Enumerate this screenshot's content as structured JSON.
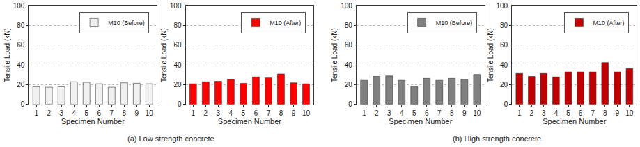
{
  "chart_data": [
    {
      "type": "bar",
      "x_label": "Specimen Number",
      "y_label": "Tensile Load (kN)",
      "categories": [
        "1",
        "2",
        "3",
        "4",
        "5",
        "6",
        "7",
        "8",
        "9",
        "10"
      ],
      "series": [
        {
          "name": "M10 (Before)",
          "color": "#f0f0f0",
          "values": [
            18,
            17.5,
            18,
            23,
            22.5,
            21,
            17.5,
            22,
            21.5,
            21
          ]
        }
      ],
      "ylim": [
        0,
        100
      ],
      "yticks": [
        0,
        20,
        40,
        60,
        80,
        100
      ],
      "grid": true,
      "legend": "upper right"
    },
    {
      "type": "bar",
      "x_label": "Specimen Number",
      "y_label": "Tensile Load (kN)",
      "categories": [
        "1",
        "2",
        "3",
        "4",
        "5",
        "6",
        "7",
        "8",
        "9",
        "10"
      ],
      "series": [
        {
          "name": "M10 (After)",
          "color": "#ff0000",
          "values": [
            21,
            23,
            23.5,
            25.5,
            21.5,
            28,
            27,
            31,
            22,
            21
          ]
        }
      ],
      "ylim": [
        0,
        100
      ],
      "yticks": [
        0,
        20,
        40,
        60,
        80,
        100
      ],
      "grid": true,
      "legend": "upper right"
    },
    {
      "type": "bar",
      "x_label": "Specimen Number",
      "y_label": "Tensile Load (kN)",
      "categories": [
        "1",
        "2",
        "3",
        "4",
        "5",
        "6",
        "7",
        "8",
        "9",
        "10"
      ],
      "series": [
        {
          "name": "M10 (Before)",
          "color": "#808080",
          "values": [
            24.5,
            28.5,
            29,
            24.5,
            18.5,
            26.5,
            24.5,
            26.5,
            25.5,
            30.5
          ]
        }
      ],
      "ylim": [
        0,
        100
      ],
      "yticks": [
        0,
        20,
        40,
        60,
        80,
        100
      ],
      "grid": true,
      "legend": "upper right"
    },
    {
      "type": "bar",
      "x_label": "Specimen Number",
      "y_label": "Tensile Load (kN)",
      "categories": [
        "1",
        "2",
        "3",
        "4",
        "5",
        "6",
        "7",
        "8",
        "9",
        "10"
      ],
      "series": [
        {
          "name": "M10 (After)",
          "color": "#c00000",
          "values": [
            31.5,
            28.5,
            31.5,
            28,
            33,
            33,
            33,
            42.5,
            33,
            36.5
          ]
        }
      ],
      "ylim": [
        0,
        100
      ],
      "yticks": [
        0,
        20,
        40,
        60,
        80,
        100
      ],
      "grid": true,
      "legend": "upper right"
    }
  ],
  "captions": [
    "(a) Low strength concrete",
    "(b) High strength concrete"
  ]
}
